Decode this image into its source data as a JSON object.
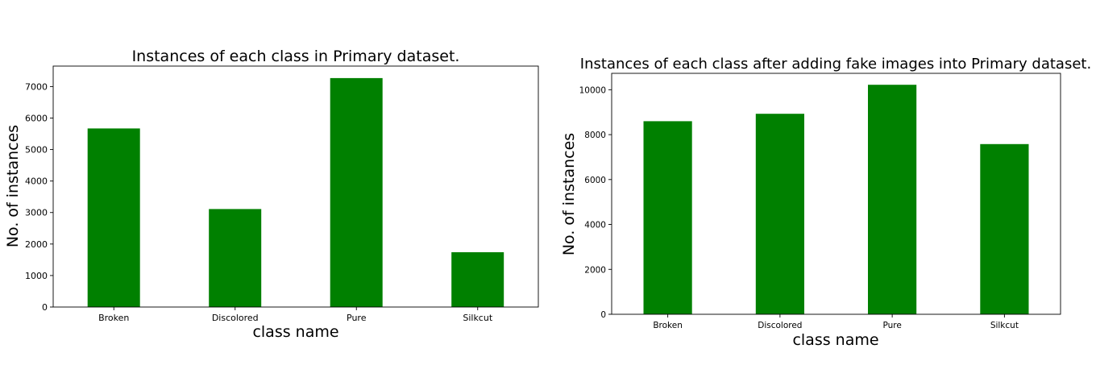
{
  "chart_data": [
    {
      "type": "bar",
      "title": "Instances of each class in Primary dataset.",
      "xlabel": "class name",
      "ylabel": "No. of instances",
      "categories": [
        "Broken",
        "Discolored",
        "Pure",
        "Silkcut"
      ],
      "values": [
        5670,
        3110,
        7270,
        1740
      ],
      "ylim": [
        0,
        7650
      ],
      "yticks": [
        0,
        1000,
        2000,
        3000,
        4000,
        5000,
        6000,
        7000
      ],
      "bar_color": "#008000",
      "grid": false
    },
    {
      "type": "bar",
      "title": "Instances of each class after adding fake images into Primary dataset.",
      "xlabel": "class name",
      "ylabel": "No. of instances",
      "categories": [
        "Broken",
        "Discolored",
        "Pure",
        "Silkcut"
      ],
      "values": [
        8600,
        8930,
        10220,
        7580
      ],
      "ylim": [
        0,
        10730
      ],
      "yticks": [
        0,
        2000,
        4000,
        6000,
        8000,
        10000
      ],
      "bar_color": "#008000",
      "grid": false
    }
  ]
}
